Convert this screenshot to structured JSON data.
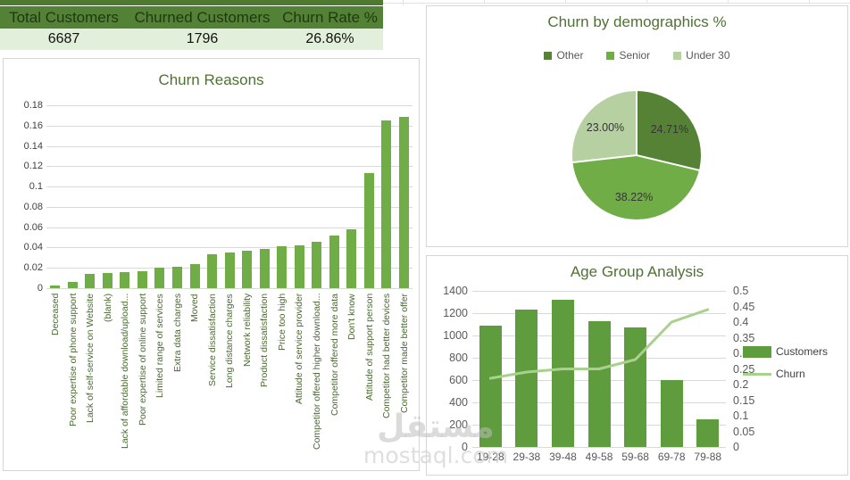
{
  "kpi": {
    "columns": [
      {
        "label": "Total Customers",
        "value": "6687"
      },
      {
        "label": "Churned Customers",
        "value": "1796"
      },
      {
        "label": "Churn Rate %",
        "value": "26.86%"
      }
    ],
    "header_bg": "#538135",
    "value_bg": "#e2efda"
  },
  "watermark": {
    "arabic": "مستقل",
    "domain": "mostaql.com"
  },
  "colors": {
    "title_green": "#4f7233",
    "grid_gray": "#d9d9d9",
    "axis_text": "#595959"
  },
  "chart_data": [
    {
      "id": "churn_reasons",
      "type": "bar",
      "title": "Churn Reasons",
      "bar_color": "#70ad47",
      "grid": true,
      "ylim": [
        0,
        0.18
      ],
      "ytick_labels": [
        "0",
        "0.02",
        "0.04",
        "0.06",
        "0.08",
        "0.1",
        "0.12",
        "0.14",
        "0.16",
        "0.18"
      ],
      "categories": [
        "Deceased",
        "Poor expertise of phone support",
        "Lack of self-service on Website",
        "(blank)",
        "Lack of affordable download/upload...",
        "Poor expertise of online support",
        "Limited range of services",
        "Extra data charges",
        "Moved",
        "Service dissatisfaction",
        "Long distance charges",
        "Network reliability",
        "Product dissatisfaction",
        "Price too high",
        "Attitude of service provider",
        "Competitor offered higher download...",
        "Competitor offered more data",
        "Don't know",
        "Attitude of support person",
        "Competitor had better devices",
        "Competitor made better offer"
      ],
      "values": [
        0.003,
        0.006,
        0.014,
        0.015,
        0.016,
        0.017,
        0.02,
        0.021,
        0.024,
        0.033,
        0.035,
        0.037,
        0.039,
        0.041,
        0.042,
        0.046,
        0.052,
        0.058,
        0.113,
        0.165,
        0.169
      ]
    },
    {
      "id": "churn_by_demographics",
      "type": "pie",
      "title": "Churn by demographics %",
      "legend_position": "top",
      "slices": [
        {
          "name": "Other",
          "value": 24.71,
          "label": "24.71%",
          "color": "#568235"
        },
        {
          "name": "Senior",
          "value": 38.22,
          "label": "38.22%",
          "color": "#70ad47"
        },
        {
          "name": "Under 30",
          "value": 23.0,
          "label": "23.00%",
          "color": "#b6d0a2"
        }
      ]
    },
    {
      "id": "age_group_analysis",
      "type": "combo",
      "title": "Age Group Analysis",
      "legend_position": "right",
      "categories": [
        "19-28",
        "29-38",
        "39-48",
        "49-58",
        "59-68",
        "69-78",
        "79-88"
      ],
      "series": [
        {
          "name": "Customers",
          "type": "bar",
          "axis": "left",
          "color": "#5f9c3e",
          "values": [
            1090,
            1230,
            1320,
            1125,
            1075,
            600,
            245
          ]
        },
        {
          "name": "Churn",
          "type": "line",
          "axis": "right",
          "color": "#a9d18e",
          "values": [
            0.22,
            0.24,
            0.25,
            0.25,
            0.28,
            0.4,
            0.44
          ]
        }
      ],
      "left_axis": {
        "min": 0,
        "max": 1400,
        "tick_labels": [
          "0",
          "200",
          "400",
          "600",
          "800",
          "1000",
          "1200",
          "1400"
        ]
      },
      "right_axis": {
        "min": 0,
        "max": 0.5,
        "tick_labels": [
          "0",
          "0.05",
          "0.1",
          "0.15",
          "0.2",
          "0.25",
          "0.3",
          "0.35",
          "0.4",
          "0.45",
          "0.5"
        ]
      }
    }
  ]
}
